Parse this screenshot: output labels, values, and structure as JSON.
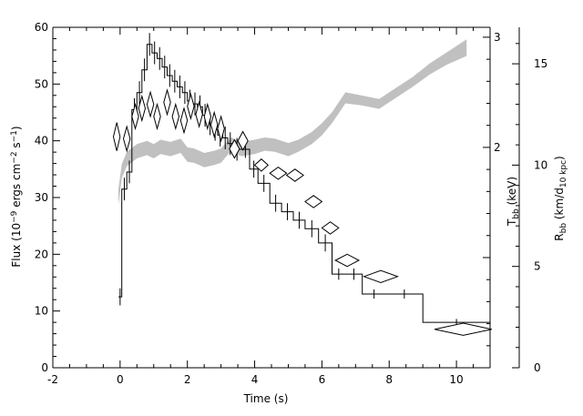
{
  "chart_data": {
    "type": "line",
    "xlabel": "Time (s)",
    "x_ticks": [
      -2,
      0,
      2,
      4,
      6,
      8,
      10
    ],
    "xlim": [
      -2,
      11
    ],
    "y_left": {
      "label_parts": [
        "Flux (10",
        "−9",
        " ergs cm",
        "−2",
        " s",
        "−1",
        ")"
      ],
      "ticks": [
        0,
        10,
        20,
        30,
        40,
        50,
        60
      ],
      "ylim": [
        0,
        60
      ]
    },
    "y_temp": {
      "label_main": "T",
      "label_sub": "bb",
      "label_rest": " (keV)",
      "ticks": [
        2,
        3
      ],
      "range": [
        0,
        3.09
      ]
    },
    "y_radius": {
      "label_main": "R",
      "label_sub": "bb",
      "label_rest": " (km/d",
      "label_sub2": "10 kpc",
      "label_end": ")",
      "ticks": [
        0,
        5,
        10,
        15
      ],
      "range": [
        0,
        16.8
      ]
    },
    "series": [
      {
        "kind": "step",
        "axis": "flux",
        "edges": [
          -0.05,
          0.05,
          0.2,
          0.35,
          0.5,
          0.65,
          0.8,
          0.95,
          1.1,
          1.25,
          1.4,
          1.55,
          1.7,
          1.85,
          2.0,
          2.15,
          2.3,
          2.45,
          2.6,
          2.75,
          2.9,
          3.05,
          3.2,
          3.35,
          3.6,
          3.85,
          4.1,
          4.45,
          4.8,
          5.15,
          5.5,
          5.9,
          6.3,
          6.7,
          7.2,
          7.9,
          9.0,
          11.0
        ],
        "values": [
          12.5,
          31.5,
          34.5,
          45.5,
          48.5,
          52.5,
          57.0,
          55.5,
          54.5,
          53.0,
          51.5,
          50.5,
          49.5,
          48.5,
          47.0,
          46.5,
          46.0,
          44.5,
          43.0,
          42.0,
          41.0,
          40.5,
          39.5,
          38.5,
          38.5,
          35.0,
          32.5,
          29.0,
          27.5,
          26.0,
          24.5,
          22.0,
          16.5,
          16.5,
          13.0,
          13.0,
          8.0
        ],
        "errors": [
          1.5,
          2.0,
          2.0,
          2.0,
          2.0,
          2.0,
          2.0,
          2.0,
          2.0,
          2.0,
          2.0,
          2.0,
          2.0,
          2.0,
          2.0,
          2.0,
          2.0,
          2.0,
          2.0,
          2.0,
          2.0,
          2.0,
          2.0,
          2.0,
          1.5,
          1.5,
          1.5,
          1.5,
          1.5,
          1.5,
          1.5,
          1.5,
          1.0,
          1.0,
          0.8,
          0.8,
          0.6
        ]
      },
      {
        "kind": "diamonds",
        "axis": "radius",
        "x": [
          -0.1,
          0.2,
          0.45,
          0.65,
          0.9,
          1.1,
          1.4,
          1.65,
          1.9,
          2.1,
          2.35,
          2.6,
          2.8,
          3.0,
          3.4,
          3.65,
          4.2,
          4.7,
          5.2,
          5.75,
          6.25,
          6.75,
          7.75,
          10.2
        ],
        "y": [
          11.4,
          11.3,
          12.4,
          12.8,
          13.0,
          12.4,
          13.1,
          12.4,
          12.2,
          12.9,
          12.5,
          12.4,
          12.0,
          11.8,
          10.8,
          11.2,
          10.0,
          9.6,
          9.5,
          8.2,
          6.9,
          5.3,
          4.5,
          1.9
        ],
        "xerr": [
          0.1,
          0.1,
          0.1,
          0.1,
          0.1,
          0.1,
          0.1,
          0.1,
          0.1,
          0.1,
          0.1,
          0.1,
          0.1,
          0.1,
          0.15,
          0.15,
          0.2,
          0.25,
          0.25,
          0.25,
          0.25,
          0.35,
          0.5,
          0.85
        ],
        "yerr": [
          0.7,
          0.6,
          0.6,
          0.6,
          0.6,
          0.6,
          0.6,
          0.6,
          0.6,
          0.6,
          0.6,
          0.6,
          0.6,
          0.6,
          0.45,
          0.45,
          0.3,
          0.3,
          0.3,
          0.3,
          0.3,
          0.3,
          0.3,
          0.3
        ]
      },
      {
        "kind": "band",
        "axis": "temperature",
        "color": "#c0c0c0",
        "x": [
          -0.05,
          0.05,
          0.2,
          0.5,
          0.8,
          1.0,
          1.2,
          1.5,
          1.8,
          2.0,
          2.2,
          2.5,
          2.8,
          3.0,
          3.3,
          3.6,
          4.0,
          4.3,
          4.6,
          5.0,
          5.3,
          5.7,
          6.0,
          6.3,
          6.7,
          7.2,
          7.7,
          8.2,
          8.7,
          9.2,
          9.7,
          10.3
        ],
        "lower": [
          1.48,
          1.72,
          1.83,
          1.9,
          1.93,
          1.9,
          1.94,
          1.92,
          1.95,
          1.87,
          1.86,
          1.82,
          1.84,
          1.86,
          1.97,
          1.92,
          1.94,
          1.97,
          1.96,
          1.92,
          1.96,
          2.03,
          2.11,
          2.22,
          2.4,
          2.38,
          2.35,
          2.45,
          2.55,
          2.66,
          2.75,
          2.83
        ],
        "upper": [
          1.62,
          1.85,
          1.96,
          2.03,
          2.06,
          2.03,
          2.07,
          2.05,
          2.08,
          2.0,
          1.99,
          1.95,
          1.97,
          1.99,
          2.09,
          2.05,
          2.07,
          2.09,
          2.08,
          2.04,
          2.07,
          2.14,
          2.22,
          2.32,
          2.5,
          2.47,
          2.44,
          2.54,
          2.64,
          2.76,
          2.86,
          2.98
        ]
      }
    ]
  }
}
